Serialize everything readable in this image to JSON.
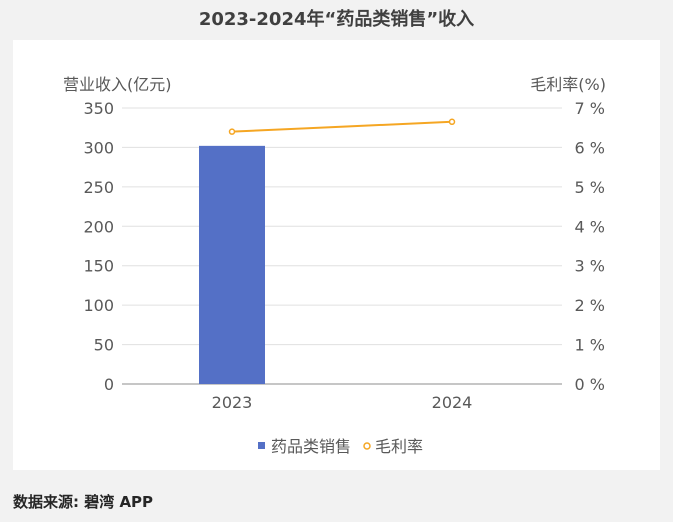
{
  "title": "2023-2024年“药品类销售”收入",
  "source": "数据来源: 碧湾 APP",
  "chart_data": {
    "type": "bar+line",
    "title": "2023-2024年“药品类销售”收入",
    "categories": [
      "2023",
      "2024"
    ],
    "series": [
      {
        "name": "药品类销售",
        "type": "bar",
        "axis": "left",
        "color": "#5470c6",
        "values": [
          302,
          null
        ]
      },
      {
        "name": "毛利率",
        "type": "line",
        "axis": "right",
        "color": "#f5a623",
        "values": [
          6.4,
          6.65
        ]
      }
    ],
    "y_left": {
      "label": "营业收入(亿元)",
      "range": [
        0,
        350
      ],
      "ticks": [
        "350",
        "300",
        "250",
        "200",
        "150",
        "100",
        "50",
        "0"
      ],
      "tick_values": [
        350,
        300,
        250,
        200,
        150,
        100,
        50,
        0
      ]
    },
    "y_right": {
      "label": "毛利率(%)",
      "range": [
        0,
        7
      ],
      "ticks": [
        "7 %",
        "6 %",
        "5 %",
        "4 %",
        "3 %",
        "2 %",
        "1 %",
        "0 %"
      ],
      "tick_values": [
        7,
        6,
        5,
        4,
        3,
        2,
        1,
        0
      ]
    },
    "grid": true,
    "legend": "bottom-center",
    "legend_labels": [
      "药品类销售",
      "毛利率"
    ]
  }
}
